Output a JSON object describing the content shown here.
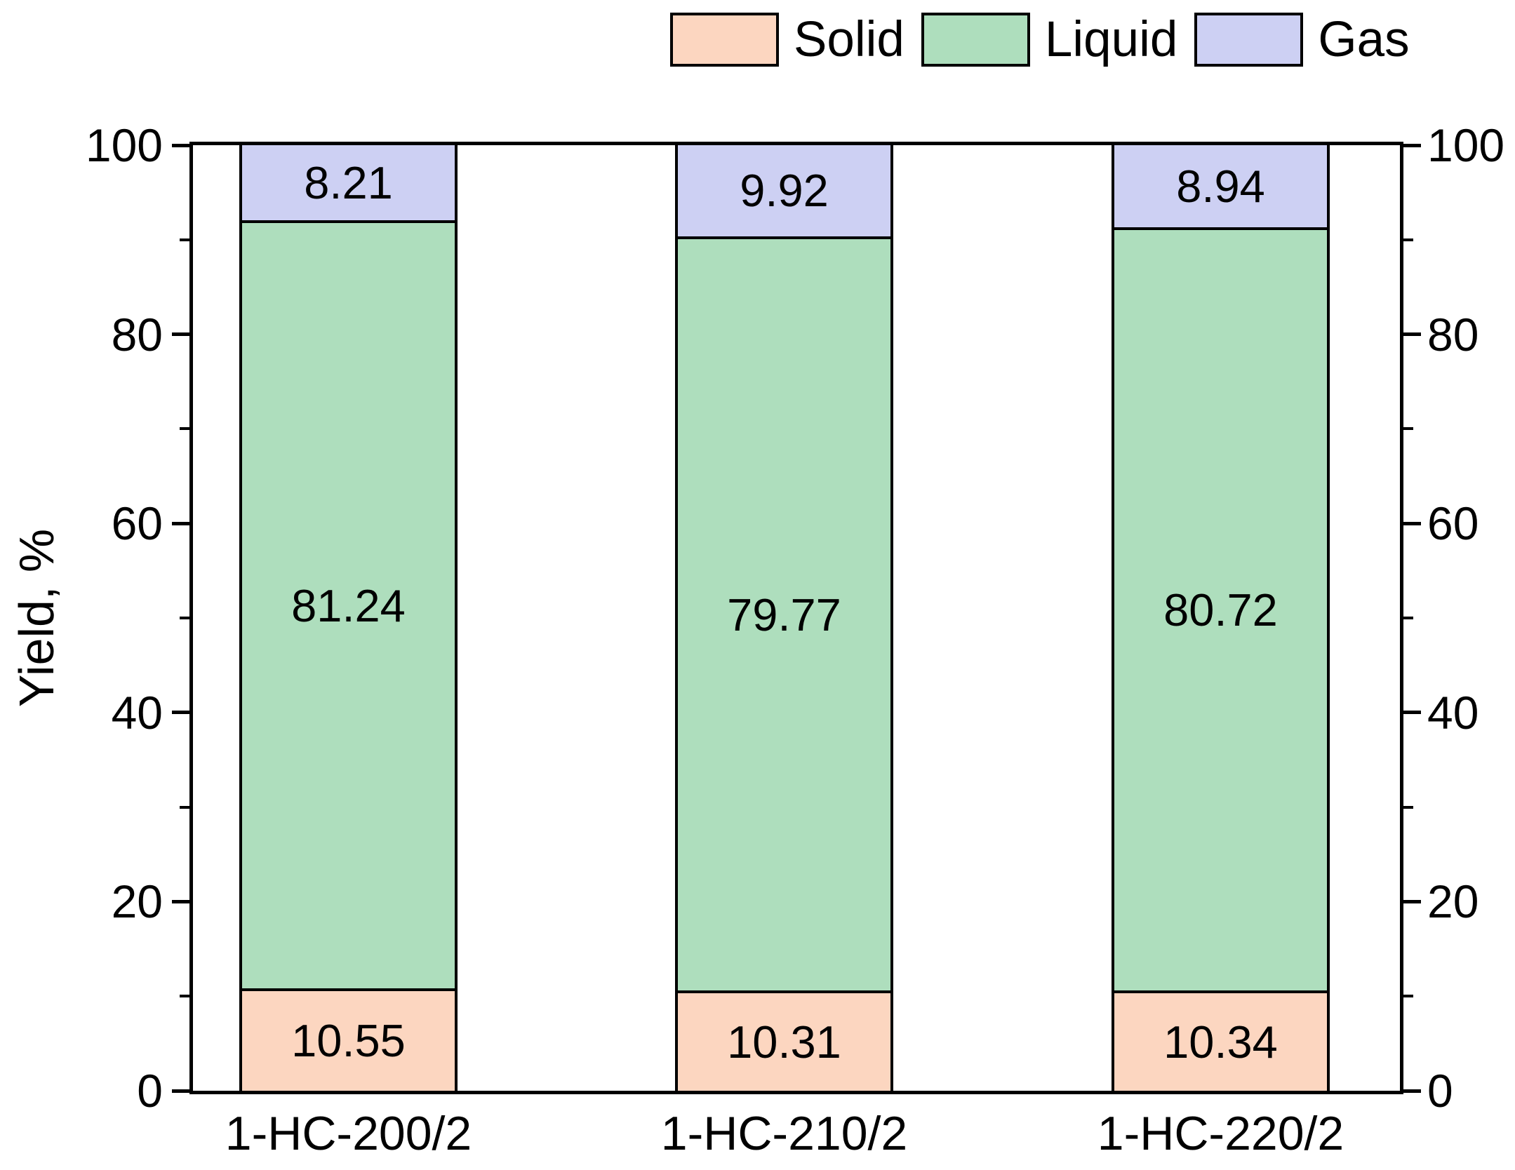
{
  "chart_data": {
    "type": "bar",
    "stacked": true,
    "title": "",
    "categories": [
      "1-HC-200/2",
      "1-HC-210/2",
      "1-HC-220/2"
    ],
    "series": [
      {
        "name": "Solid",
        "color": "#FCD6C0",
        "values": [
          10.55,
          10.31,
          10.34
        ]
      },
      {
        "name": "Liquid",
        "color": "#AEDEBD",
        "values": [
          81.24,
          79.77,
          80.72
        ]
      },
      {
        "name": "Gas",
        "color": "#CDD0F3",
        "values": [
          8.21,
          9.92,
          8.94
        ]
      }
    ],
    "xlabel": "",
    "ylabel": "Yield, %",
    "ylim": [
      0,
      100
    ],
    "yticks": [
      0,
      20,
      40,
      60,
      80,
      100
    ],
    "minor_yticks": [
      10,
      30,
      50,
      70,
      90
    ],
    "right_axis_mirrored": true,
    "legend_position": "top",
    "grid": false,
    "value_label_decimals": 2,
    "frame_color": "#000000"
  },
  "legend": {
    "items": [
      "Solid",
      "Liquid",
      "Gas"
    ]
  },
  "axes": {
    "y_title": "Yield, %",
    "left_tick_labels": [
      "0",
      "20",
      "40",
      "60",
      "80",
      "100"
    ],
    "right_tick_labels": [
      "0",
      "20",
      "40",
      "60",
      "80",
      "100"
    ],
    "x_tick_labels": [
      "1-HC-200/2",
      "1-HC-210/2",
      "1-HC-220/2"
    ]
  }
}
